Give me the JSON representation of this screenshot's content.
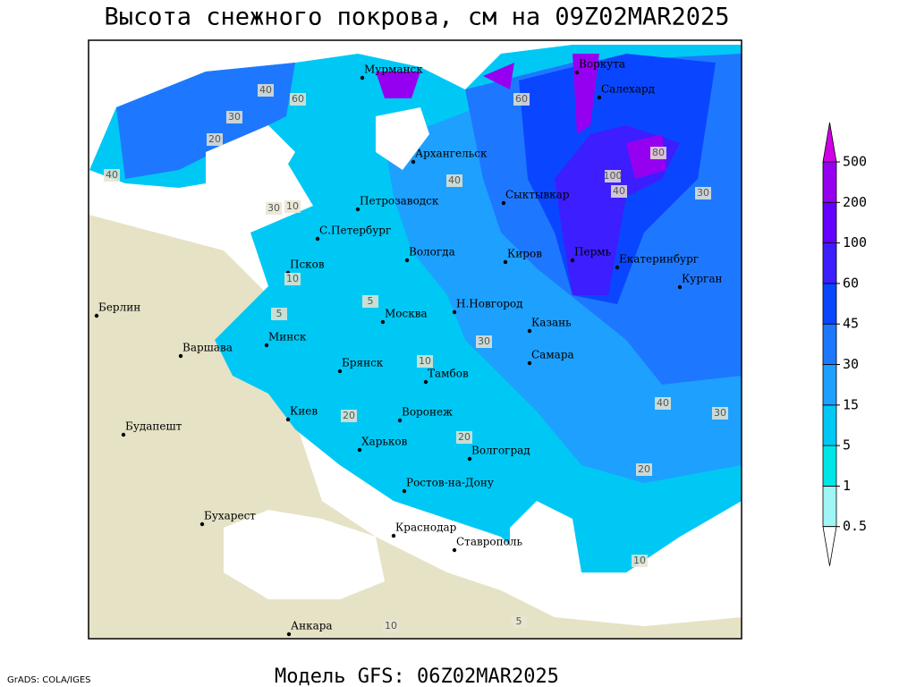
{
  "title": "Высота снежного покрова, см на 09Z02MAR2025",
  "footer": "Модель GFS: 06Z02MAR2025",
  "credit": "GrADS: COLA/IGES",
  "cities": [
    "Мурманск",
    "Воркута",
    "Салехард",
    "Архангельск",
    "Сыктывкар",
    "Петрозаводск",
    "С.Петербург",
    "Вологда",
    "Киров",
    "Пермь",
    "Екатеринбург",
    "Курган",
    "Псков",
    "Берлин",
    "Н.Новгород",
    "Москва",
    "Казань",
    "Минск",
    "Варшава",
    "Самара",
    "Брянск",
    "Тамбов",
    "Киев",
    "Воронеж",
    "Будапешт",
    "Харьков",
    "Волгоград",
    "Ростов-на-Дону",
    "Бухарест",
    "Краснодар",
    "Ставрополь",
    "Анкара"
  ],
  "contour_labels": [
    40,
    60,
    30,
    20,
    40,
    10,
    30,
    60,
    80,
    100,
    40,
    30,
    40,
    10,
    5,
    5,
    10,
    30,
    20,
    40,
    20,
    30,
    10,
    5,
    10,
    20
  ],
  "colorbar": {
    "levels": [
      0.5,
      1,
      5,
      15,
      30,
      45,
      60,
      100,
      200,
      500
    ],
    "colors": [
      "#ffffff",
      "#a0f5f5",
      "#00e6e6",
      "#00c8f5",
      "#1ea0ff",
      "#1e78ff",
      "#0a46ff",
      "#3c1eff",
      "#6400ff",
      "#9600f0",
      "#d200e6"
    ]
  }
}
